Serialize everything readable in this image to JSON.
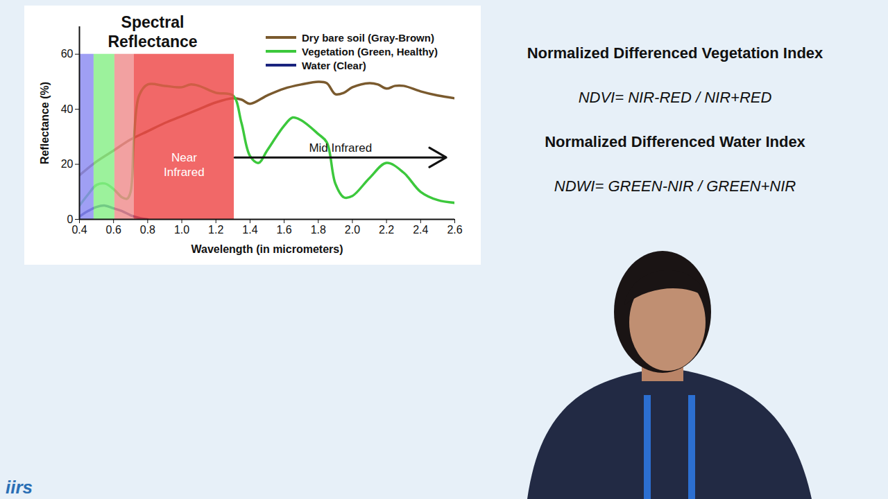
{
  "chart_data": {
    "type": "line",
    "title": "Spectral Reflectance",
    "x_label": "Wavelength (in micrometers)",
    "y_label": "Reflectance (%)",
    "xlim": [
      0.4,
      2.6
    ],
    "ylim": [
      0,
      70
    ],
    "xticks": [
      0.4,
      0.6,
      0.8,
      {
        "value": 1,
        "label": "1.0"
      },
      1.2,
      1.4,
      1.6,
      1.8,
      {
        "value": 2,
        "label": "2.0"
      },
      2.2,
      2.4,
      2.6
    ],
    "yticks": [
      0,
      20,
      40,
      60
    ],
    "legend": "top-right",
    "series": [
      {
        "name": "Dry bare soil (Gray-Brown)",
        "color": "#7a5a2e",
        "x": [
          0.4,
          0.5,
          0.6,
          0.7,
          0.8,
          0.9,
          1.0,
          1.1,
          1.2,
          1.3,
          1.35,
          1.4,
          1.5,
          1.6,
          1.7,
          1.8,
          1.85,
          1.9,
          1.95,
          2.0,
          2.1,
          2.15,
          2.2,
          2.25,
          2.3,
          2.4,
          2.5,
          2.6
        ],
        "values": [
          16,
          21,
          25,
          29,
          32,
          35,
          37.5,
          40,
          42.5,
          44,
          43.5,
          42,
          45,
          47.5,
          49,
          50,
          49.5,
          45.5,
          46,
          48,
          49.5,
          49,
          47.5,
          48.5,
          48.5,
          46.5,
          45,
          44
        ]
      },
      {
        "name": "Vegetation (Green, Healthy)",
        "color": "#3cc83c",
        "x": [
          0.4,
          0.45,
          0.5,
          0.55,
          0.6,
          0.65,
          0.68,
          0.7,
          0.72,
          0.75,
          0.8,
          0.9,
          1.0,
          1.05,
          1.1,
          1.2,
          1.3,
          1.35,
          1.4,
          1.45,
          1.5,
          1.6,
          1.65,
          1.7,
          1.8,
          1.85,
          1.9,
          1.95,
          2.0,
          2.1,
          2.2,
          2.3,
          2.4,
          2.5,
          2.6
        ],
        "values": [
          5,
          9,
          12.5,
          13,
          11,
          8,
          7.5,
          10,
          30,
          45,
          49,
          48.5,
          48,
          49,
          48.5,
          46,
          45,
          35,
          23,
          20.5,
          25,
          34,
          37,
          36,
          31,
          28,
          13,
          8,
          8.5,
          15,
          20.5,
          17,
          10,
          7,
          6
        ]
      },
      {
        "name": "Water (Clear)",
        "color": "#1a237e",
        "x": [
          0.4,
          0.45,
          0.5,
          0.55,
          0.6,
          0.65,
          0.7,
          0.75,
          0.8
        ],
        "values": [
          1,
          3,
          4.5,
          5,
          4,
          3,
          1.5,
          0.5,
          0
        ]
      }
    ],
    "bands": [
      {
        "from": 0.4,
        "to": 0.485,
        "top": 60,
        "color": "#8a8af2"
      },
      {
        "from": 0.485,
        "to": 0.607,
        "top": 60,
        "color": "#86ef86"
      },
      {
        "from": 0.607,
        "to": 0.72,
        "top": 60,
        "color": "#ef8c8c"
      },
      {
        "from": 0.72,
        "to": 1.307,
        "top": 60,
        "color": "#ee4747",
        "label": "Near Infrared"
      }
    ],
    "annotations": [
      {
        "text": "Mid Infrared",
        "x1": 1.31,
        "x2": 2.55,
        "y": 22.5
      }
    ]
  },
  "panel": [
    {
      "heading": "Normalized Differenced Vegetation Index",
      "formula": "NDVI= NIR-RED / NIR+RED"
    },
    {
      "heading": "Normalized Differenced Water Index",
      "formula": "NDWI= GREEN-NIR / GREEN+NIR"
    }
  ],
  "logo": "iirs"
}
